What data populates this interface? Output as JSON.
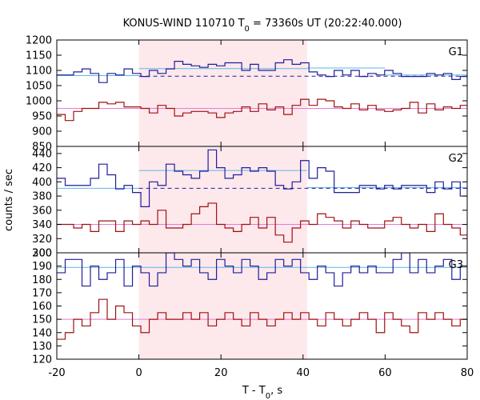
{
  "chart_data": {
    "type": "line",
    "title_main": "KONUS-WIND 110710 T",
    "title_sub": "0",
    "title_rest": " = 73360s UT (20:22:40.000)",
    "xlabel_main": "T - T",
    "xlabel_sub": "0",
    "xlabel_rest": ", s",
    "ylabel": "counts / sec",
    "xlim": [
      -20,
      80
    ],
    "x_ticks": [
      "-20",
      "0",
      "20",
      "40",
      "60",
      "80"
    ],
    "highlight_interval": [
      0,
      41
    ],
    "colors": {
      "upper_series": "#1f1f9a",
      "lower_series": "#a01010",
      "upper_fit": "#5ab8e6",
      "lower_fit": "#e87ad8",
      "highlight": "#fde8ec",
      "background_model": "#1f1f9a"
    },
    "panels": [
      {
        "label": "G1",
        "ylim": [
          850,
          1200
        ],
        "y_ticks": [
          850,
          900,
          950,
          1000,
          1050,
          1100,
          1150,
          1200
        ],
        "series": [
          {
            "role": "upper",
            "x_start": -20,
            "bin_width": 2.048,
            "values": [
              1085,
              1085,
              1095,
              1105,
              1090,
              1060,
              1090,
              1085,
              1105,
              1090,
              1080,
              1100,
              1090,
              1105,
              1130,
              1120,
              1115,
              1110,
              1120,
              1115,
              1125,
              1125,
              1100,
              1120,
              1100,
              1100,
              1125,
              1135,
              1120,
              1125,
              1095,
              1085,
              1080,
              1100,
              1085,
              1100,
              1080,
              1090,
              1085,
              1100,
              1090,
              1080,
              1080,
              1080,
              1090,
              1085,
              1090,
              1070,
              1080,
              1100
            ]
          },
          {
            "role": "lower",
            "x_start": -20,
            "bin_width": 2.048,
            "values": [
              955,
              935,
              965,
              975,
              975,
              995,
              990,
              995,
              980,
              980,
              975,
              960,
              985,
              975,
              950,
              960,
              965,
              965,
              960,
              945,
              960,
              965,
              980,
              965,
              990,
              970,
              980,
              955,
              985,
              1005,
              985,
              1005,
              1000,
              980,
              975,
              990,
              970,
              985,
              970,
              965,
              970,
              975,
              995,
              960,
              990,
              970,
              980,
              975,
              985,
              985,
              960
            ]
          },
          {
            "role": "upper_fit",
            "segments": [
              {
                "x": [
                  -20,
                  0
                ],
                "y": [
                  1083,
                  1083
                ]
              },
              {
                "x": [
                  0,
                  41
                ],
                "y": [
                  1106,
                  1106
                ]
              },
              {
                "x": [
                  41,
                  60
                ],
                "y": [
                  1108,
                  1108
                ]
              },
              {
                "x": [
                  60,
                  80
                ],
                "y": [
                  1085,
                  1085
                ]
              }
            ]
          },
          {
            "role": "background_level",
            "x": [
              0,
              80
            ],
            "y": [
              1081,
              1081
            ]
          },
          {
            "role": "lower_fit",
            "x": [
              -20,
              80
            ],
            "y": [
              975,
              975
            ]
          }
        ]
      },
      {
        "label": "G2",
        "ylim": [
          300,
          450
        ],
        "y_ticks": [
          300,
          320,
          340,
          360,
          380,
          400,
          420,
          440
        ],
        "series": [
          {
            "role": "upper",
            "x_start": -20,
            "bin_width": 2.048,
            "values": [
              405,
              395,
              395,
              395,
              405,
              425,
              410,
              390,
              395,
              385,
              365,
              400,
              395,
              425,
              415,
              410,
              405,
              415,
              445,
              420,
              405,
              410,
              420,
              415,
              420,
              415,
              395,
              390,
              400,
              430,
              405,
              420,
              415,
              385,
              385,
              385,
              395,
              395,
              390,
              395,
              390,
              395,
              395,
              395,
              385,
              400,
              390,
              400,
              380,
              390,
              410,
              395,
              390,
              395,
              385
            ]
          },
          {
            "role": "lower",
            "x_start": -20,
            "bin_width": 2.048,
            "values": [
              340,
              340,
              335,
              340,
              330,
              345,
              345,
              330,
              345,
              340,
              345,
              340,
              360,
              335,
              335,
              340,
              355,
              365,
              370,
              340,
              335,
              330,
              340,
              350,
              335,
              350,
              325,
              315,
              335,
              345,
              340,
              355,
              350,
              345,
              335,
              345,
              340,
              335,
              335,
              345,
              350,
              340,
              335,
              340,
              330,
              355,
              340,
              335,
              325,
              335,
              345,
              340,
              335,
              325,
              330
            ]
          },
          {
            "role": "upper_fit",
            "segments": [
              {
                "x": [
                  -20,
                  0
                ],
                "y": [
                  391,
                  391
                ]
              },
              {
                "x": [
                  0,
                  41
                ],
                "y": [
                  416,
                  416
                ]
              },
              {
                "x": [
                  41,
                  80
                ],
                "y": [
                  392,
                  392
                ]
              }
            ]
          },
          {
            "role": "background_level",
            "x": [
              0,
              80
            ],
            "y": [
              391,
              391
            ]
          },
          {
            "role": "lower_fit",
            "x": [
              -20,
              80
            ],
            "y": [
              340,
              340
            ]
          }
        ]
      },
      {
        "label": "G3",
        "ylim": [
          120,
          200
        ],
        "y_ticks": [
          120,
          130,
          140,
          150,
          160,
          170,
          180,
          190,
          200
        ],
        "series": [
          {
            "role": "upper",
            "x_start": -20,
            "bin_width": 2.048,
            "values": [
              185,
              195,
              195,
              175,
              190,
              180,
              185,
              195,
              175,
              190,
              185,
              175,
              185,
              200,
              195,
              190,
              195,
              185,
              180,
              195,
              190,
              185,
              195,
              190,
              180,
              185,
              195,
              190,
              195,
              185,
              180,
              190,
              185,
              175,
              185,
              190,
              185,
              190,
              185,
              185,
              195,
              200,
              185,
              195,
              185,
              190,
              195,
              180,
              190,
              195,
              185,
              195,
              200,
              180,
              185
            ]
          },
          {
            "role": "lower",
            "x_start": -20,
            "bin_width": 2.048,
            "values": [
              135,
              140,
              150,
              145,
              155,
              165,
              150,
              160,
              155,
              145,
              140,
              150,
              155,
              150,
              150,
              155,
              150,
              155,
              145,
              150,
              155,
              150,
              145,
              155,
              150,
              145,
              150,
              155,
              150,
              155,
              150,
              145,
              155,
              150,
              145,
              150,
              155,
              150,
              140,
              155,
              150,
              145,
              140,
              155,
              150,
              155,
              150,
              145,
              150,
              155,
              150,
              145,
              150,
              140
            ]
          },
          {
            "role": "upper_fit",
            "x": [
              -20,
              80
            ],
            "y": [
              189,
              189
            ]
          },
          {
            "role": "lower_fit",
            "x": [
              -20,
              80
            ],
            "y": [
              150,
              150
            ]
          }
        ]
      }
    ]
  }
}
